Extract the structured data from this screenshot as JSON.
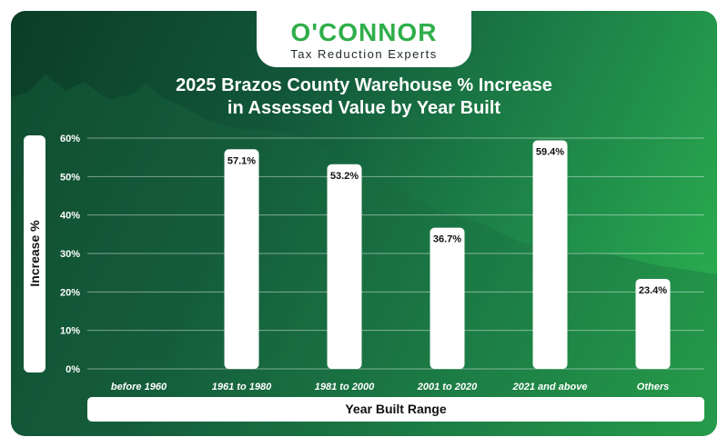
{
  "brand": {
    "name": "O'CONNOR",
    "tagline": "Tax Reduction Experts"
  },
  "chart_data": {
    "type": "bar",
    "title_line1": "2025 Brazos County Warehouse % Increase",
    "title_line2": "in Assessed Value by Year Built",
    "xlabel": "Year Built Range",
    "ylabel": "Increase %",
    "categories": [
      "before 1960",
      "1961 to 1980",
      "1981 to 2000",
      "2001 to 2020",
      "2021 and above",
      "Others"
    ],
    "values": [
      null,
      57.1,
      53.2,
      36.7,
      59.4,
      23.4
    ],
    "value_labels": [
      "",
      "57.1%",
      "53.2%",
      "36.7%",
      "59.4%",
      "23.4%"
    ],
    "y_ticks": [
      "0%",
      "10%",
      "20%",
      "30%",
      "40%",
      "50%",
      "60%"
    ],
    "ylim": [
      0,
      60
    ],
    "grid": true,
    "colors": {
      "bar": "#ffffff",
      "background_start": "#0b3d26",
      "background_end": "#2db650",
      "accent": "#2fae4a"
    }
  }
}
